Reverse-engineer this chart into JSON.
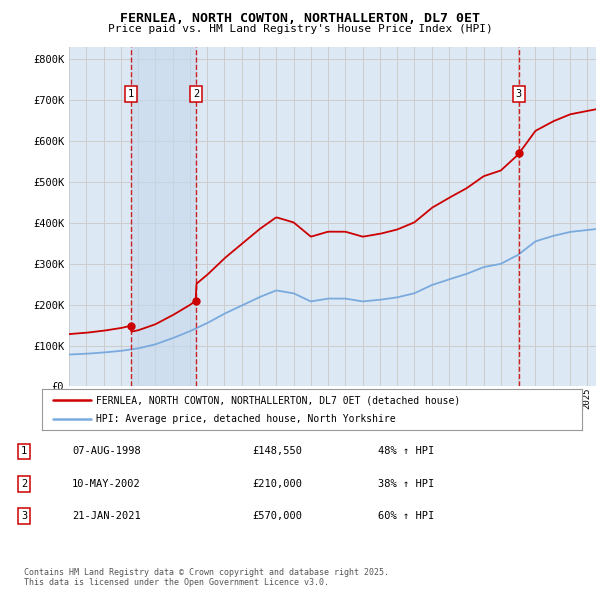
{
  "title1": "FERNLEA, NORTH COWTON, NORTHALLERTON, DL7 0ET",
  "title2": "Price paid vs. HM Land Registry's House Price Index (HPI)",
  "legend_label1": "FERNLEA, NORTH COWTON, NORTHALLERTON, DL7 0ET (detached house)",
  "legend_label2": "HPI: Average price, detached house, North Yorkshire",
  "footer1": "Contains HM Land Registry data © Crown copyright and database right 2025.",
  "footer2": "This data is licensed under the Open Government Licence v3.0.",
  "sales": [
    {
      "num": 1,
      "date_num": 1998.58,
      "price": 148550,
      "label": "07-AUG-1998",
      "price_str": "£148,550",
      "hpi_str": "48% ↑ HPI"
    },
    {
      "num": 2,
      "date_num": 2002.36,
      "price": 210000,
      "label": "10-MAY-2002",
      "price_str": "£210,000",
      "hpi_str": "38% ↑ HPI"
    },
    {
      "num": 3,
      "date_num": 2021.05,
      "price": 570000,
      "label": "21-JAN-2021",
      "price_str": "£570,000",
      "hpi_str": "60% ↑ HPI"
    }
  ],
  "ylim": [
    0,
    830000
  ],
  "xlim_start": 1995.0,
  "xlim_end": 2025.5,
  "red_color": "#cc0000",
  "blue_color": "#7aaadd",
  "background_color": "#dce9f5",
  "plot_bg": "#ffffff",
  "grid_color": "#cccccc",
  "dashed_color": "#cc0000",
  "hpi_anchors_x": [
    1995,
    1996,
    1997,
    1998,
    1999,
    2000,
    2001,
    2002,
    2003,
    2004,
    2005,
    2006,
    2007,
    2008,
    2009,
    2010,
    2011,
    2012,
    2013,
    2014,
    2015,
    2016,
    2017,
    2018,
    2019,
    2020,
    2021,
    2022,
    2023,
    2024,
    2025.5
  ],
  "hpi_anchors_y": [
    78000,
    80000,
    83000,
    87000,
    93000,
    103000,
    118000,
    135000,
    155000,
    178000,
    198000,
    218000,
    235000,
    228000,
    208000,
    215000,
    215000,
    208000,
    212000,
    218000,
    228000,
    248000,
    262000,
    275000,
    292000,
    300000,
    322000,
    355000,
    368000,
    378000,
    385000
  ]
}
